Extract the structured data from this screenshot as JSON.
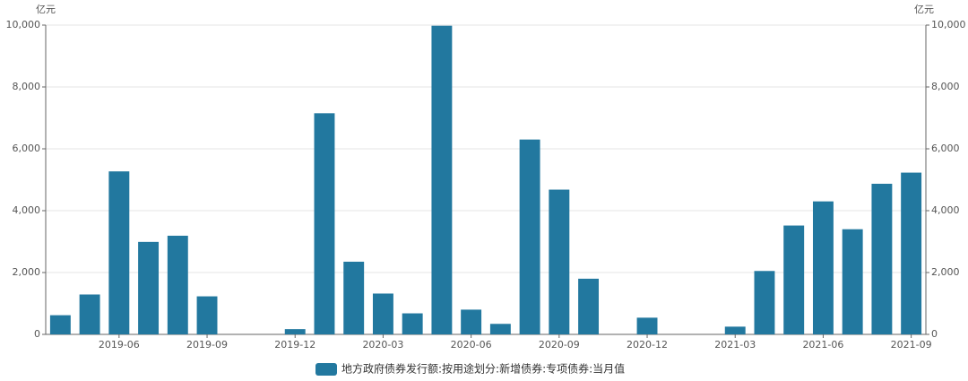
{
  "chart_data": {
    "type": "bar",
    "y_label": "亿元",
    "y2_label": "亿元",
    "categories": [
      null,
      null,
      "2019-06",
      null,
      null,
      "2019-09",
      null,
      null,
      "2019-12",
      null,
      null,
      "2020-03",
      null,
      null,
      "2020-06",
      null,
      null,
      "2020-09",
      null,
      null,
      "2020-12",
      null,
      null,
      "2021-03",
      null,
      null,
      "2021-06",
      null,
      null,
      "2021-09"
    ],
    "series": [
      {
        "name": "地方政府债券发行额:按用途划分:新增债券:专项债券:当月值",
        "color": "#22789f",
        "values": [
          620,
          1290,
          5270,
          2990,
          3190,
          1230,
          0,
          0,
          170,
          7150,
          2350,
          1320,
          680,
          9980,
          800,
          340,
          6300,
          4680,
          1800,
          0,
          540,
          0,
          0,
          250,
          2050,
          3520,
          4300,
          3400,
          4870,
          5230
        ]
      }
    ],
    "ylim": [
      0,
      10000
    ],
    "yticks": [
      0,
      {
        "value": 2000,
        "label": "2,000"
      },
      {
        "value": 4000,
        "label": "4,000"
      },
      {
        "value": 6000,
        "label": "6,000"
      },
      {
        "value": 8000,
        "label": "8,000"
      },
      {
        "value": 10000,
        "label": "10,000"
      }
    ],
    "y2lim": [
      0,
      10000
    ],
    "y2ticks": [
      0,
      {
        "value": 2000,
        "label": "2,000"
      },
      {
        "value": 4000,
        "label": "4,000"
      },
      {
        "value": 6000,
        "label": "6,000"
      },
      {
        "value": 8000,
        "label": "8,000"
      },
      {
        "value": 10000,
        "label": "10,000"
      }
    ],
    "grid": true,
    "legend": "bottom"
  }
}
